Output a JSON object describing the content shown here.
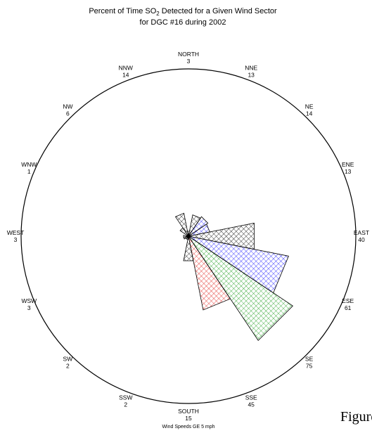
{
  "title_line1_pre": "Percent of Time SO",
  "title_line1_sub": "2",
  "title_line1_post": " Detected for a Given Wind Sector",
  "title_line2": "for DGC #16 during 2002",
  "footer": "Wind Speeds GE 5 mph",
  "figure_label": "Figure",
  "chart_data": {
    "type": "wind-rose",
    "max_radius_value": 100,
    "sectors": [
      {
        "name": "NORTH",
        "value": 3
      },
      {
        "name": "NNE",
        "value": 13
      },
      {
        "name": "NE",
        "value": 14
      },
      {
        "name": "ENE",
        "value": 13
      },
      {
        "name": "EAST",
        "value": 40
      },
      {
        "name": "ESE",
        "value": 61
      },
      {
        "name": "SE",
        "value": 75
      },
      {
        "name": "SSE",
        "value": 45
      },
      {
        "name": "SOUTH",
        "value": 15
      },
      {
        "name": "SSW",
        "value": 2
      },
      {
        "name": "SW",
        "value": 2
      },
      {
        "name": "WSW",
        "value": 3
      },
      {
        "name": "WEST",
        "value": 3
      },
      {
        "name": "WNW",
        "value": 1
      },
      {
        "name": "NW",
        "value": 6
      },
      {
        "name": "NNW",
        "value": 14
      }
    ],
    "colors": {
      "black": "#000000",
      "blue": "#1a1aff",
      "green": "#1a9a1a",
      "red": "#e0201a"
    }
  }
}
